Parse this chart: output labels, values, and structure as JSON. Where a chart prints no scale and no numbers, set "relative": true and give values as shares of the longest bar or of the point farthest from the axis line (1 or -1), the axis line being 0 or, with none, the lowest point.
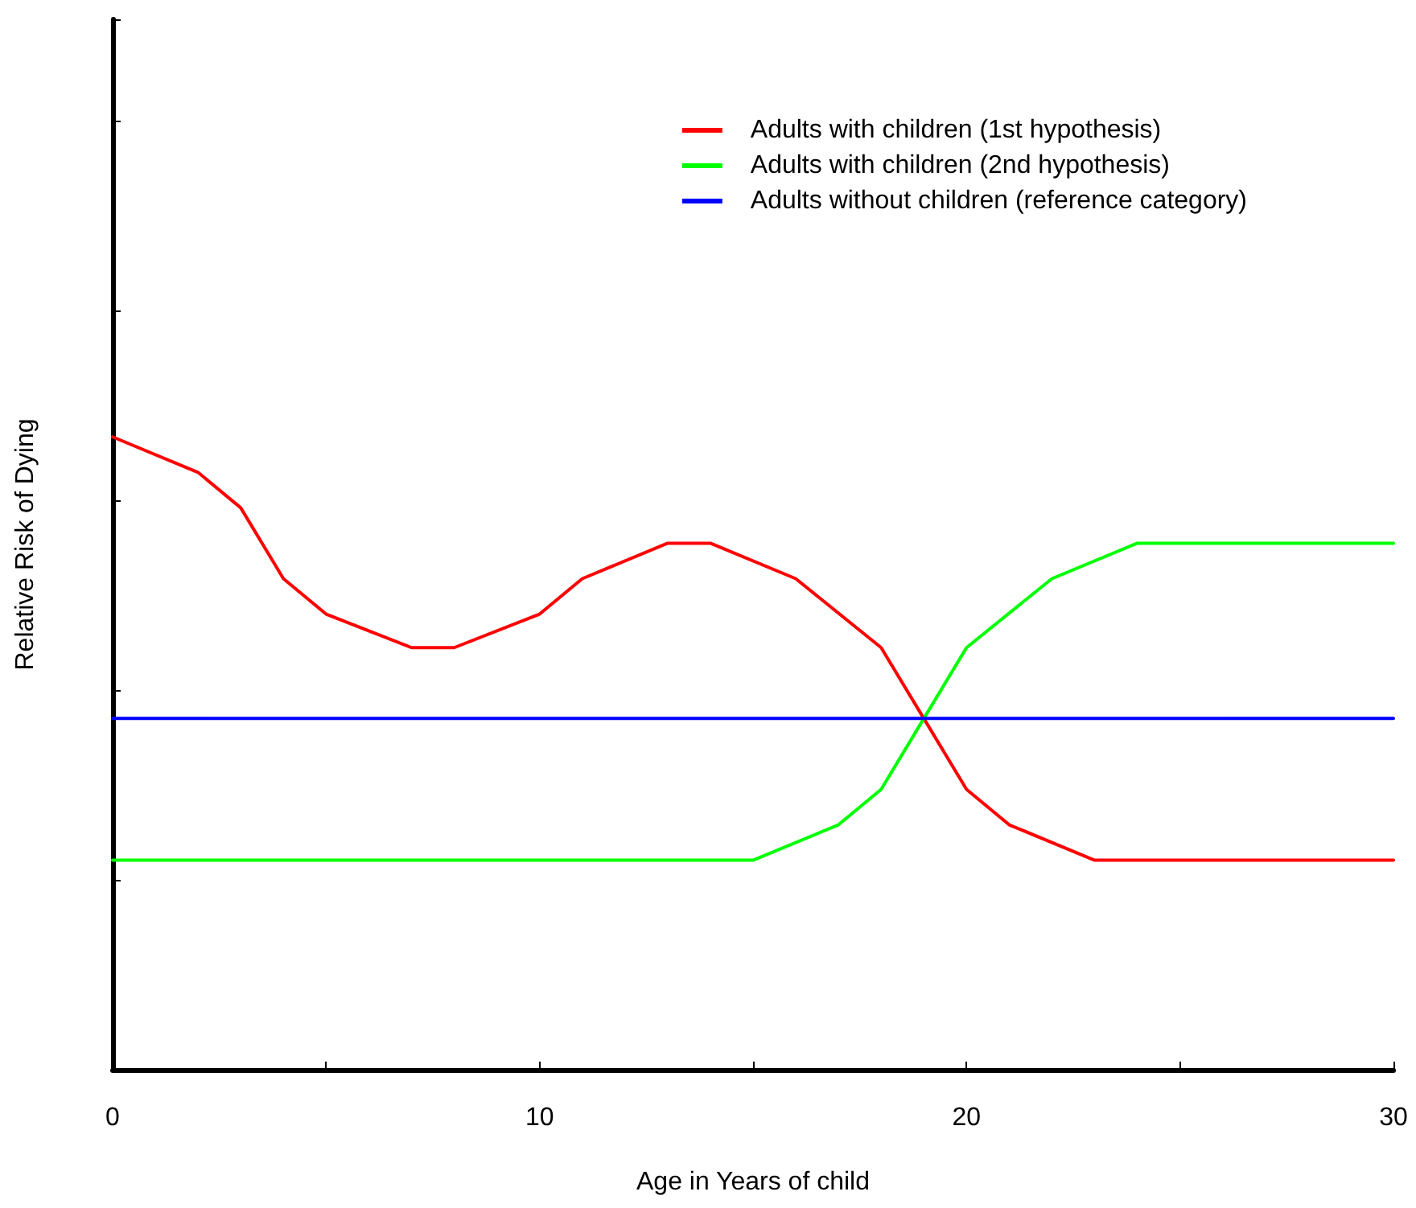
{
  "chart_data": {
    "type": "line",
    "relative": true,
    "xlabel": "Age in Years of child",
    "ylabel": "Relative Risk of Dying",
    "xlim": [
      0,
      30
    ],
    "xticks": [
      0,
      {
        "value": 5,
        "label": null
      },
      10,
      {
        "value": 15,
        "label": null
      },
      20,
      {
        "value": 25,
        "label": null
      },
      30
    ],
    "legend": "top right",
    "grid": false,
    "marker": "none",
    "line_style": "solid",
    "series": [
      {
        "name": "Adults with children (1st hypothesis)",
        "color": "#ff0000",
        "x": [
          0,
          2,
          3,
          4,
          5,
          7,
          8,
          10,
          11,
          13,
          14,
          16,
          18,
          19,
          20,
          21,
          23,
          30
        ],
        "values": [
          1.0,
          0.944,
          0.888,
          0.776,
          0.72,
          0.667,
          0.667,
          0.72,
          0.776,
          0.832,
          0.832,
          0.776,
          0.667,
          0.555,
          0.443,
          0.387,
          0.331,
          0.331
        ]
      },
      {
        "name": "Adults with children (2nd hypothesis)",
        "color": "#00ff00",
        "x": [
          0,
          15,
          17,
          18,
          19,
          20,
          22,
          24,
          30
        ],
        "values": [
          0.331,
          0.331,
          0.387,
          0.443,
          0.555,
          0.667,
          0.776,
          0.832,
          0.832
        ]
      },
      {
        "name": "Adults without children (reference category)",
        "color": "#0000ff",
        "x": [
          0,
          30
        ],
        "values": [
          0.555,
          0.555
        ]
      }
    ]
  }
}
